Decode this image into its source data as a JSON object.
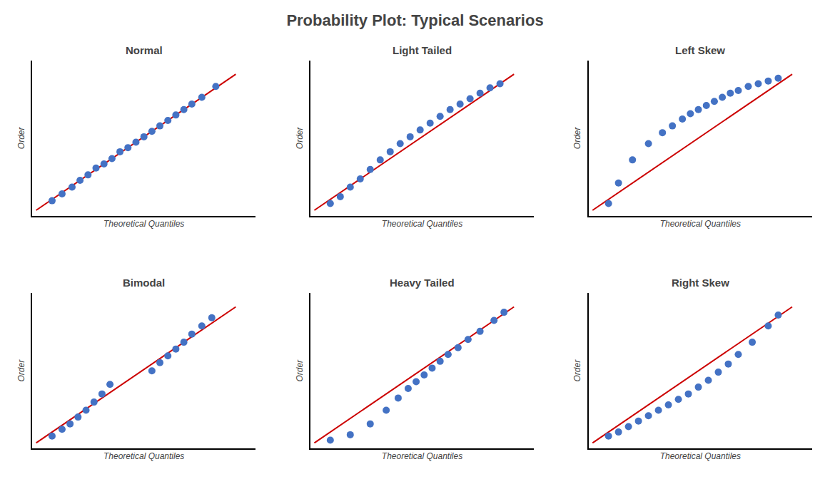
{
  "title": "Probability Plot: Typical Scenarios",
  "chart_data": [
    {
      "type": "scatter",
      "title": "Normal",
      "xlabel": "Theoretical Quantiles",
      "ylabel": "Order",
      "xlim": [
        -0.02,
        1.1
      ],
      "ylim": [
        -0.04,
        1.1
      ],
      "xticks": [],
      "yticks": [],
      "tick_labels": false,
      "grid": false,
      "series": [
        {
          "type": "line",
          "color": "#CC0000",
          "x": [
            0.0,
            1.0
          ],
          "values": [
            0.0,
            1.0
          ]
        },
        {
          "type": "scatter",
          "color": "#4472C4",
          "x": [
            0.08,
            0.13,
            0.18,
            0.22,
            0.26,
            0.3,
            0.34,
            0.38,
            0.42,
            0.46,
            0.5,
            0.54,
            0.58,
            0.62,
            0.66,
            0.7,
            0.74,
            0.78,
            0.83,
            0.9
          ],
          "values": [
            0.07,
            0.12,
            0.17,
            0.22,
            0.26,
            0.31,
            0.34,
            0.38,
            0.43,
            0.46,
            0.5,
            0.54,
            0.58,
            0.62,
            0.66,
            0.7,
            0.74,
            0.78,
            0.83,
            0.91
          ]
        }
      ]
    },
    {
      "type": "scatter",
      "title": "Light Tailed",
      "xlabel": "Theoretical Quantiles",
      "ylabel": "Order",
      "xlim": [
        -0.02,
        1.1
      ],
      "ylim": [
        -0.04,
        1.1
      ],
      "xticks": [],
      "yticks": [],
      "tick_labels": false,
      "grid": false,
      "series": [
        {
          "type": "line",
          "color": "#CC0000",
          "x": [
            0.0,
            1.0
          ],
          "values": [
            0.0,
            1.0
          ]
        },
        {
          "type": "scatter",
          "color": "#4472C4",
          "x": [
            0.08,
            0.13,
            0.18,
            0.23,
            0.28,
            0.33,
            0.38,
            0.43,
            0.48,
            0.53,
            0.58,
            0.63,
            0.68,
            0.73,
            0.78,
            0.83,
            0.88,
            0.93
          ],
          "values": [
            0.05,
            0.1,
            0.17,
            0.23,
            0.3,
            0.37,
            0.43,
            0.49,
            0.54,
            0.59,
            0.64,
            0.69,
            0.74,
            0.78,
            0.82,
            0.86,
            0.9,
            0.93
          ]
        }
      ]
    },
    {
      "type": "scatter",
      "title": "Left Skew",
      "xlabel": "Theoretical Quantiles",
      "ylabel": "Order",
      "xlim": [
        -0.02,
        1.1
      ],
      "ylim": [
        -0.04,
        1.1
      ],
      "xticks": [],
      "yticks": [],
      "tick_labels": false,
      "grid": false,
      "series": [
        {
          "type": "line",
          "color": "#CC0000",
          "x": [
            0.0,
            1.0
          ],
          "values": [
            0.0,
            1.0
          ]
        },
        {
          "type": "scatter",
          "color": "#4472C4",
          "x": [
            0.08,
            0.13,
            0.2,
            0.28,
            0.35,
            0.4,
            0.45,
            0.49,
            0.53,
            0.57,
            0.61,
            0.65,
            0.69,
            0.73,
            0.78,
            0.83,
            0.88,
            0.93
          ],
          "values": [
            0.05,
            0.2,
            0.37,
            0.49,
            0.57,
            0.62,
            0.67,
            0.71,
            0.74,
            0.77,
            0.8,
            0.83,
            0.86,
            0.88,
            0.91,
            0.93,
            0.95,
            0.97
          ]
        }
      ]
    },
    {
      "type": "scatter",
      "title": "Bimodal",
      "xlabel": "Theoretical Quantiles",
      "ylabel": "Order",
      "xlim": [
        -0.02,
        1.1
      ],
      "ylim": [
        -0.04,
        1.1
      ],
      "xticks": [],
      "yticks": [],
      "tick_labels": false,
      "grid": false,
      "series": [
        {
          "type": "line",
          "color": "#CC0000",
          "x": [
            0.0,
            1.0
          ],
          "values": [
            0.0,
            1.0
          ]
        },
        {
          "type": "scatter",
          "color": "#4472C4",
          "x": [
            0.08,
            0.13,
            0.17,
            0.21,
            0.25,
            0.29,
            0.33,
            0.37,
            0.58,
            0.62,
            0.66,
            0.7,
            0.74,
            0.78,
            0.83,
            0.88
          ],
          "values": [
            0.05,
            0.1,
            0.14,
            0.19,
            0.24,
            0.3,
            0.36,
            0.43,
            0.53,
            0.59,
            0.64,
            0.69,
            0.74,
            0.8,
            0.86,
            0.92
          ]
        }
      ]
    },
    {
      "type": "scatter",
      "title": "Heavy Tailed",
      "xlabel": "Theoretical Quantiles",
      "ylabel": "Order",
      "xlim": [
        -0.02,
        1.1
      ],
      "ylim": [
        -0.04,
        1.1
      ],
      "xticks": [],
      "yticks": [],
      "tick_labels": false,
      "grid": false,
      "series": [
        {
          "type": "line",
          "color": "#CC0000",
          "x": [
            0.0,
            1.0
          ],
          "values": [
            0.0,
            1.0
          ]
        },
        {
          "type": "scatter",
          "color": "#4472C4",
          "x": [
            0.08,
            0.18,
            0.28,
            0.36,
            0.42,
            0.47,
            0.51,
            0.55,
            0.59,
            0.63,
            0.67,
            0.72,
            0.77,
            0.83,
            0.9,
            0.95
          ],
          "values": [
            0.02,
            0.06,
            0.14,
            0.24,
            0.33,
            0.4,
            0.45,
            0.5,
            0.55,
            0.6,
            0.65,
            0.7,
            0.76,
            0.82,
            0.9,
            0.96
          ]
        }
      ]
    },
    {
      "type": "scatter",
      "title": "Right Skew",
      "xlabel": "Theoretical Quantiles",
      "ylabel": "Order",
      "xlim": [
        -0.02,
        1.1
      ],
      "ylim": [
        -0.04,
        1.1
      ],
      "xticks": [],
      "yticks": [],
      "tick_labels": false,
      "grid": false,
      "series": [
        {
          "type": "line",
          "color": "#CC0000",
          "x": [
            0.0,
            1.0
          ],
          "values": [
            0.0,
            1.0
          ]
        },
        {
          "type": "scatter",
          "color": "#4472C4",
          "x": [
            0.08,
            0.13,
            0.18,
            0.23,
            0.28,
            0.33,
            0.38,
            0.43,
            0.48,
            0.53,
            0.58,
            0.63,
            0.68,
            0.73,
            0.8,
            0.88,
            0.93
          ],
          "values": [
            0.05,
            0.08,
            0.12,
            0.16,
            0.2,
            0.24,
            0.28,
            0.32,
            0.36,
            0.41,
            0.46,
            0.52,
            0.58,
            0.65,
            0.74,
            0.86,
            0.94
          ]
        }
      ]
    }
  ]
}
